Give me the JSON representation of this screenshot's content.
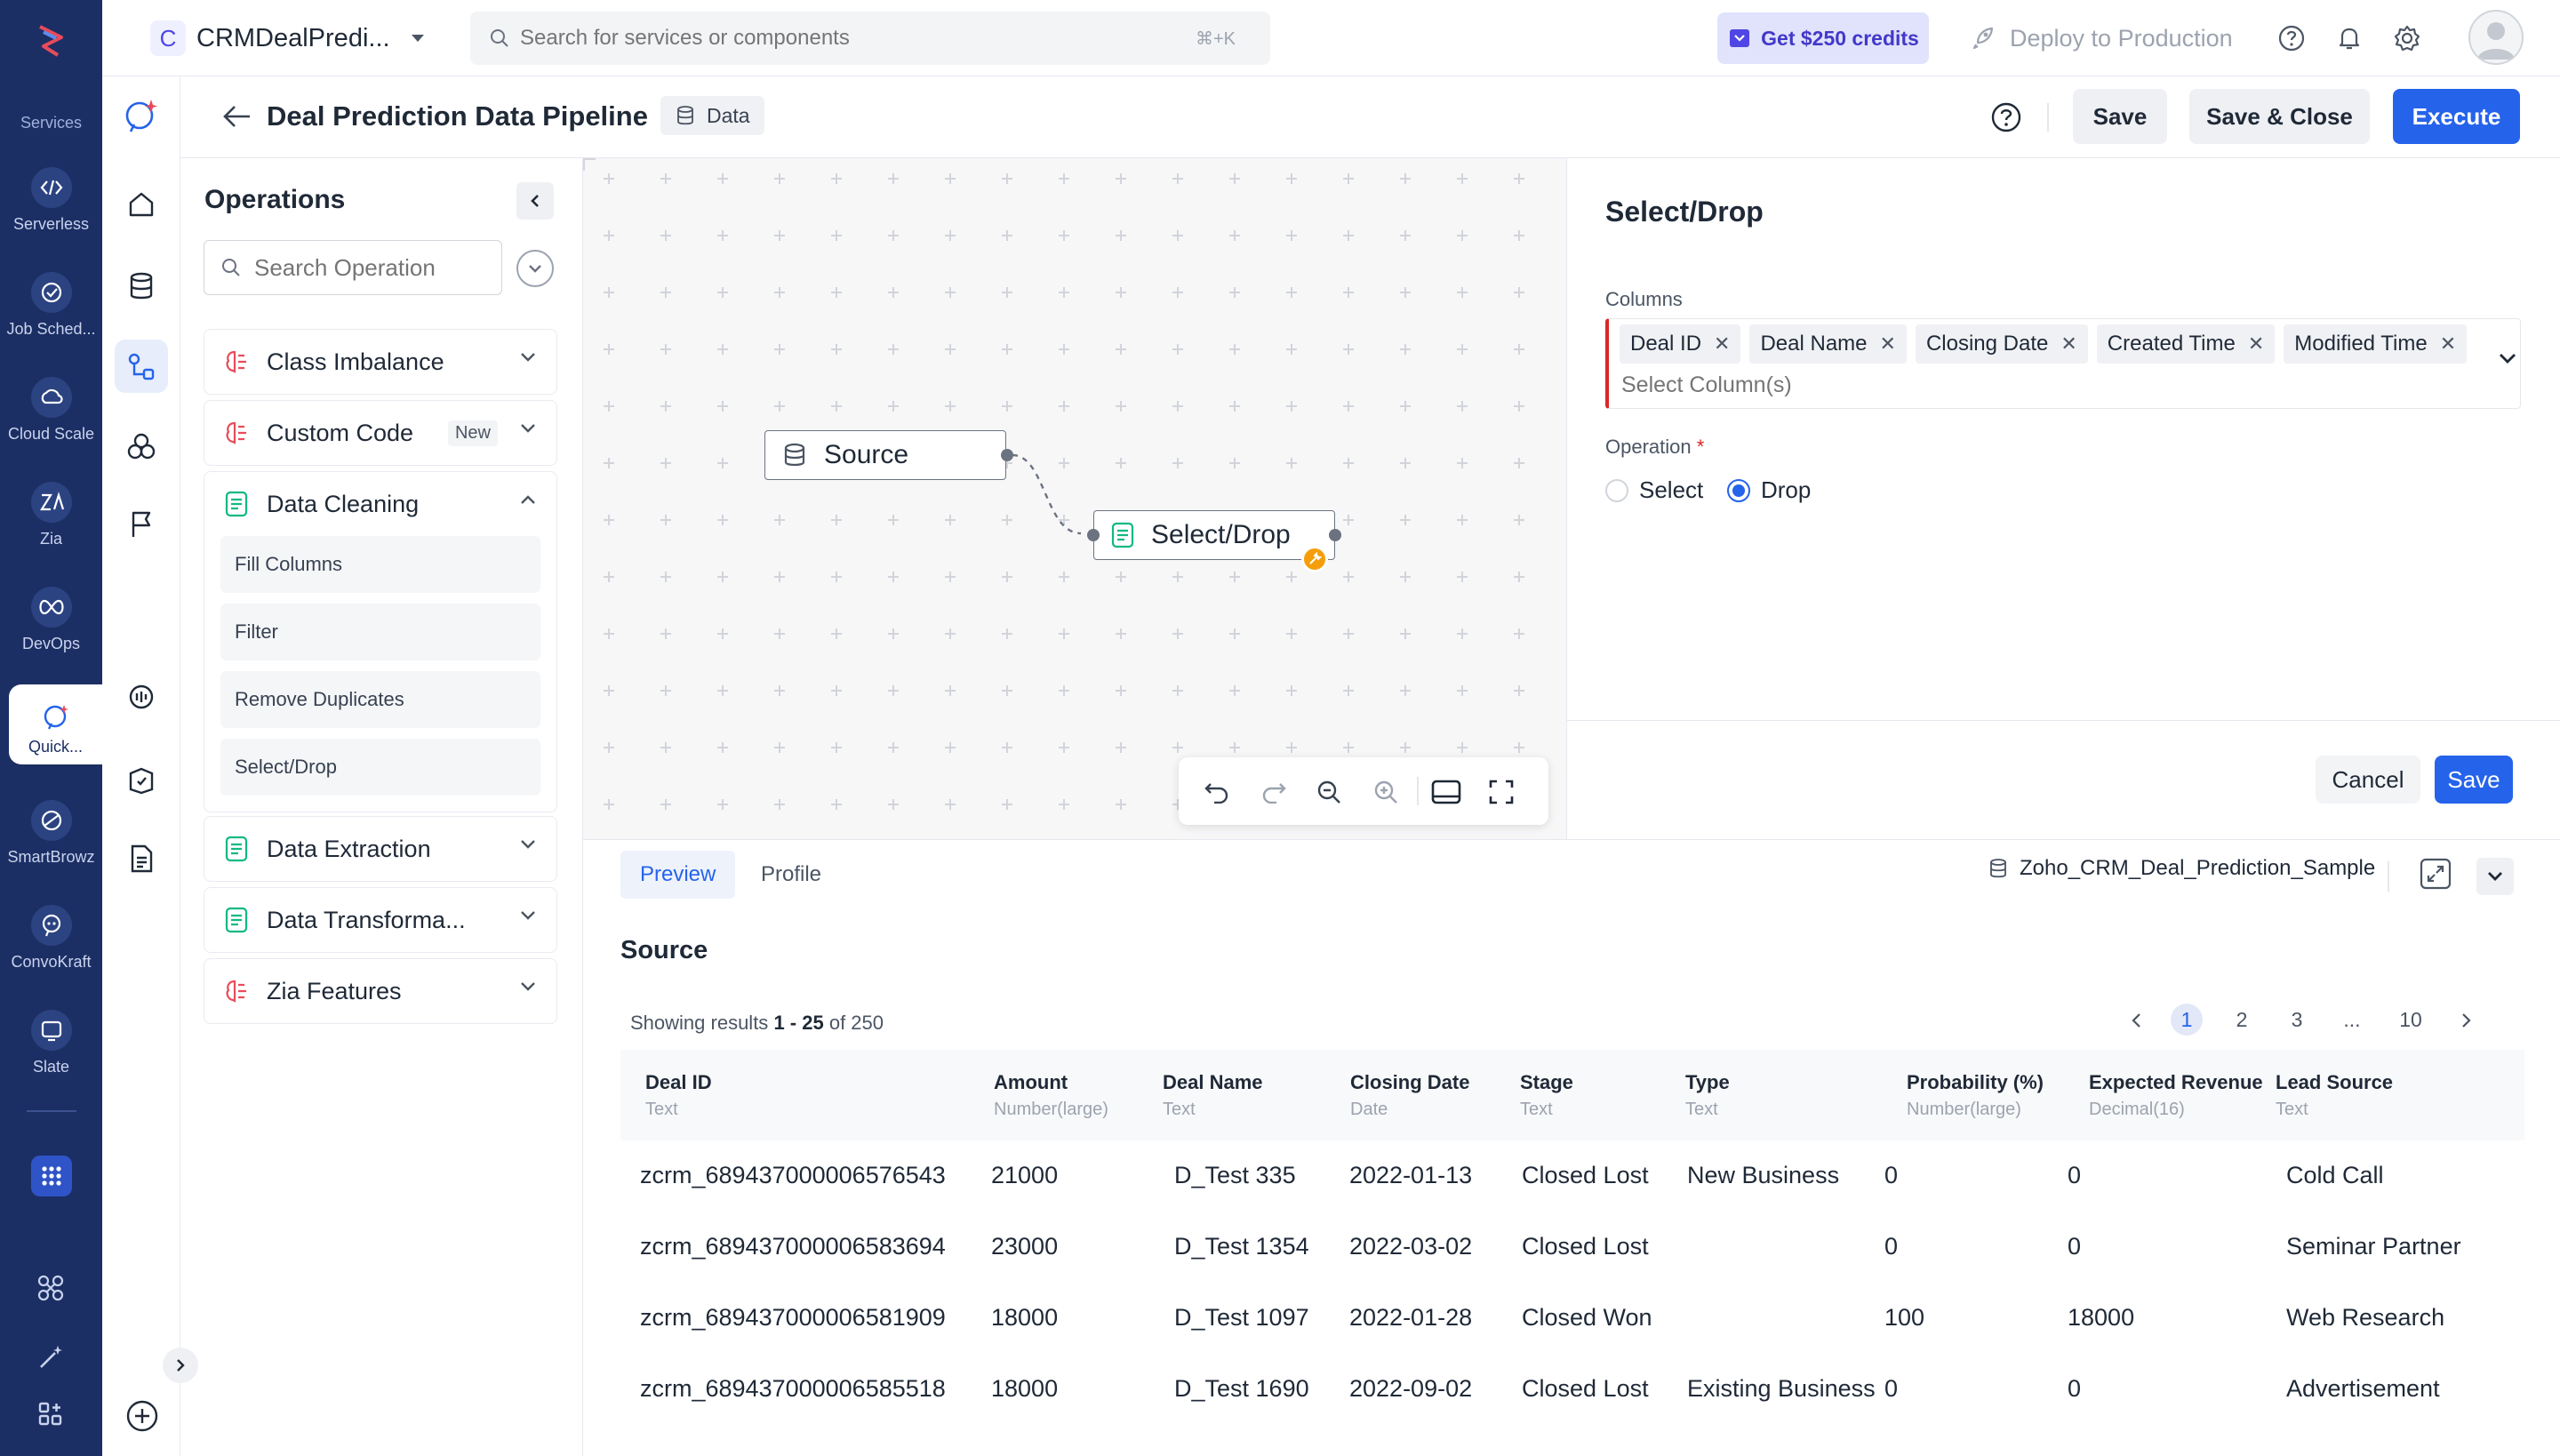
{
  "app": {
    "project_initial": "C",
    "project_name": "CRMDealPredi...",
    "search_placeholder": "Search for services or components",
    "search_shortcut": "⌘+K",
    "credits_label": "Get $250 credits",
    "deploy_label": "Deploy to Production"
  },
  "rail": {
    "services_label": "Services",
    "items": [
      {
        "label": "Serverless",
        "icon": "serverless-icon"
      },
      {
        "label": "Job Sched...",
        "icon": "job-scheduler-icon"
      },
      {
        "label": "Cloud Scale",
        "icon": "cloud-scale-icon"
      },
      {
        "label": "Zia",
        "icon": "zia-icon"
      },
      {
        "label": "DevOps",
        "icon": "devops-icon"
      },
      {
        "label": "Quick...",
        "icon": "quickml-icon"
      },
      {
        "label": "SmartBrowz",
        "icon": "smartbrowz-icon"
      },
      {
        "label": "ConvoKraft",
        "icon": "convokraft-icon"
      },
      {
        "label": "Slate",
        "icon": "slate-icon"
      }
    ]
  },
  "header": {
    "title": "Deal Prediction Data Pipeline",
    "badge": "Data",
    "save": "Save",
    "save_close": "Save & Close",
    "execute": "Execute"
  },
  "operations": {
    "title": "Operations",
    "search_placeholder": "Search Operation",
    "groups": [
      {
        "label": "Class Imbalance",
        "icon": "zia-brain-icon"
      },
      {
        "label": "Custom Code",
        "icon": "zia-brain-icon",
        "badge": "New"
      },
      {
        "label": "Data Cleaning",
        "icon": "document-icon",
        "items": [
          "Fill Columns",
          "Filter",
          "Remove Duplicates",
          "Select/Drop"
        ]
      },
      {
        "label": "Data Extraction",
        "icon": "document-icon"
      },
      {
        "label": "Data Transforma...",
        "icon": "document-icon"
      },
      {
        "label": "Zia Features",
        "icon": "zia-brain-icon"
      }
    ]
  },
  "canvas": {
    "source_node": "Source",
    "select_node": "Select/Drop"
  },
  "config": {
    "title": "Select/Drop",
    "columns_label": "Columns",
    "chips": [
      "Deal ID",
      "Deal Name",
      "Closing Date",
      "Created Time",
      "Modified Time"
    ],
    "columns_placeholder": "Select Column(s)",
    "operation_label": "Operation",
    "required_mark": "*",
    "option_select": "Select",
    "option_drop": "Drop",
    "selected_option": "Drop",
    "cancel": "Cancel",
    "save": "Save"
  },
  "data": {
    "tabs": [
      "Preview",
      "Profile"
    ],
    "active_tab": "Preview",
    "dataset_name": "Zoho_CRM_Deal_Prediction_Sample",
    "section_title": "Source",
    "showing_prefix": "Showing results",
    "showing_range": "1 - 25",
    "showing_of": "of 250",
    "pages": [
      "1",
      "2",
      "3",
      "...",
      "10"
    ],
    "current_page": "1",
    "columns": [
      {
        "name": "Deal ID",
        "type": "Text"
      },
      {
        "name": "Amount",
        "type": "Number(large)"
      },
      {
        "name": "Deal Name",
        "type": "Text"
      },
      {
        "name": "Closing Date",
        "type": "Date"
      },
      {
        "name": "Stage",
        "type": "Text"
      },
      {
        "name": "Type",
        "type": "Text"
      },
      {
        "name": "Probability (%)",
        "type": "Number(large)"
      },
      {
        "name": "Expected Revenue",
        "type": "Decimal(16)"
      },
      {
        "name": "Lead Source",
        "type": "Text"
      }
    ],
    "rows": [
      [
        "zcrm_689437000006576543",
        "21000",
        "D_Test 335",
        "2022-01-13",
        "Closed Lost",
        "New Business",
        "0",
        "0",
        "Cold Call"
      ],
      [
        "zcrm_689437000006583694",
        "23000",
        "D_Test 1354",
        "2022-03-02",
        "Closed Lost",
        "",
        "0",
        "0",
        "Seminar Partner"
      ],
      [
        "zcrm_689437000006581909",
        "18000",
        "D_Test 1097",
        "2022-01-28",
        "Closed Won",
        "",
        "100",
        "18000",
        "Web Research"
      ],
      [
        "zcrm_689437000006585518",
        "18000",
        "D_Test 1690",
        "2022-09-02",
        "Closed Lost",
        "Existing Business",
        "0",
        "0",
        "Advertisement"
      ]
    ]
  },
  "colors": {
    "rail": "#1c2f64",
    "accent": "#2563eb",
    "required": "#dc2626",
    "node_badge": "#f59e0b"
  }
}
